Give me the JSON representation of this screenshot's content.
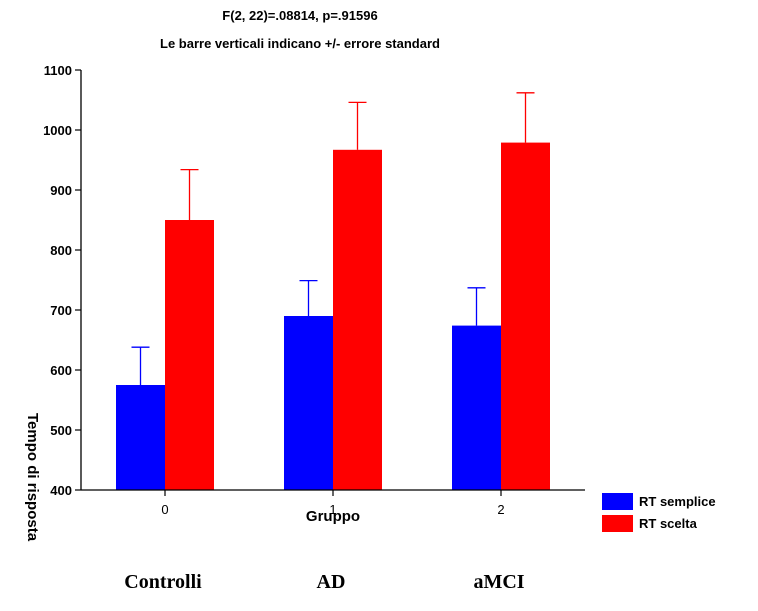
{
  "chart_data": {
    "type": "bar",
    "title": "F(2, 22)=.08814, p=.91596",
    "subtitle": "Le barre verticali indicano +/- errore standard",
    "xlabel": "Gruppo",
    "ylabel": "Tempo di risposta",
    "categories": [
      "0",
      "1",
      "2"
    ],
    "group_names": [
      "Controlli",
      "AD",
      "aMCI"
    ],
    "ylim": [
      400,
      1100
    ],
    "yticks": [
      400,
      500,
      600,
      700,
      800,
      900,
      1000,
      1100
    ],
    "grid": false,
    "legend_position": "bottom-right",
    "series": [
      {
        "name": "RT semplice",
        "color": "#0000ff",
        "values": [
          575,
          690,
          674
        ],
        "error": [
          63,
          59,
          63
        ]
      },
      {
        "name": "RT scelta",
        "color": "#ff0000",
        "values": [
          850,
          967,
          979
        ],
        "error": [
          84,
          79,
          83
        ]
      }
    ]
  }
}
